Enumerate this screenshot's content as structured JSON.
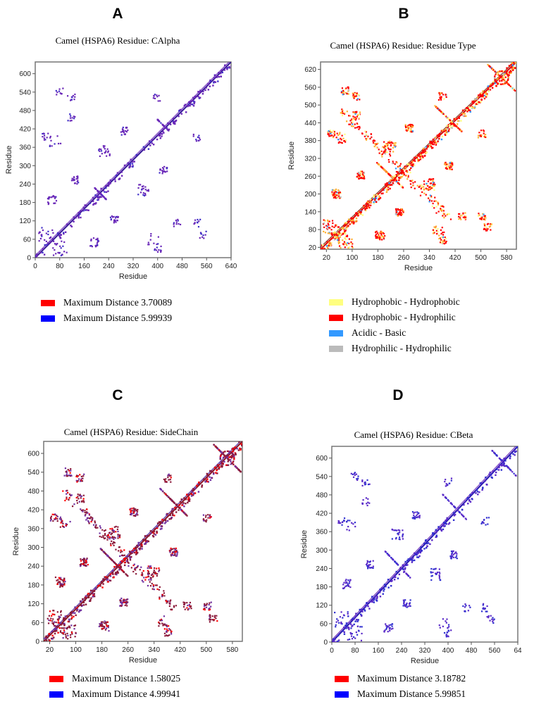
{
  "colors": {
    "red": "#ff0000",
    "blue": "#0000ff",
    "purple": "#7030a0",
    "yellow": "#ffff80",
    "light_blue": "#3399ff",
    "gray": "#bbbbbb",
    "maroon": "#8b1a2b"
  },
  "chart_data": [
    {
      "panel": "A",
      "type": "scatter",
      "title": "Camel (HSPA6) Residue: CAlpha",
      "xlabel": "Residue",
      "ylabel": "Residue",
      "xticks": [
        "0",
        "80",
        "160",
        "240",
        "320",
        "400",
        "480",
        "560",
        "640"
      ],
      "yticks": [
        "0",
        "60",
        "120",
        "180",
        "240",
        "300",
        "360",
        "420",
        "480",
        "540",
        "600"
      ],
      "legend": [
        {
          "label": "Maximum Distance 3.70089",
          "color": "#ff0000"
        },
        {
          "label": "Maximum Distance 5.99939",
          "color": "#0000ff"
        }
      ]
    },
    {
      "panel": "B",
      "type": "scatter",
      "title": "Camel (HSPA6) Residue: Residue Type",
      "xlabel": "Residue",
      "ylabel": "Residue",
      "xticks": [
        "20",
        "100",
        "180",
        "260",
        "340",
        "420",
        "500",
        "580"
      ],
      "yticks": [
        "20",
        "80",
        "140",
        "200",
        "260",
        "320",
        "380",
        "440",
        "500",
        "560",
        "620"
      ],
      "legend": [
        {
          "label": "Hydrophobic - Hydrophobic",
          "color": "#ffff80"
        },
        {
          "label": "Hydrophobic - Hydrophilic",
          "color": "#ff0000"
        },
        {
          "label": "Acidic - Basic",
          "color": "#3399ff"
        },
        {
          "label": "Hydrophilic - Hydrophilic",
          "color": "#bbbbbb"
        }
      ]
    },
    {
      "panel": "C",
      "type": "scatter",
      "title": "Camel (HSPA6) Residue: SideChain",
      "xlabel": "Residue",
      "ylabel": "Residue",
      "xticks": [
        "20",
        "100",
        "180",
        "260",
        "340",
        "420",
        "500",
        "580"
      ],
      "yticks": [
        "0",
        "60",
        "120",
        "180",
        "240",
        "300",
        "360",
        "420",
        "480",
        "540",
        "600"
      ],
      "legend": [
        {
          "label": "Maximum Distance 1.58025",
          "color": "#ff0000"
        },
        {
          "label": "Maximum Distance 4.99941",
          "color": "#0000ff"
        }
      ]
    },
    {
      "panel": "D",
      "type": "scatter",
      "title": "Camel (HSPA6) Residue: CBeta",
      "xlabel": "Residue",
      "ylabel": "Residue",
      "xticks": [
        "0",
        "80",
        "160",
        "240",
        "320",
        "400",
        "480",
        "560",
        "64"
      ],
      "yticks": [
        "0",
        "60",
        "120",
        "180",
        "240",
        "300",
        "360",
        "420",
        "480",
        "540",
        "600"
      ],
      "legend": [
        {
          "label": "Maximum Distance 3.18782",
          "color": "#ff0000"
        },
        {
          "label": "Maximum Distance 5.99851",
          "color": "#0000ff"
        }
      ]
    }
  ]
}
